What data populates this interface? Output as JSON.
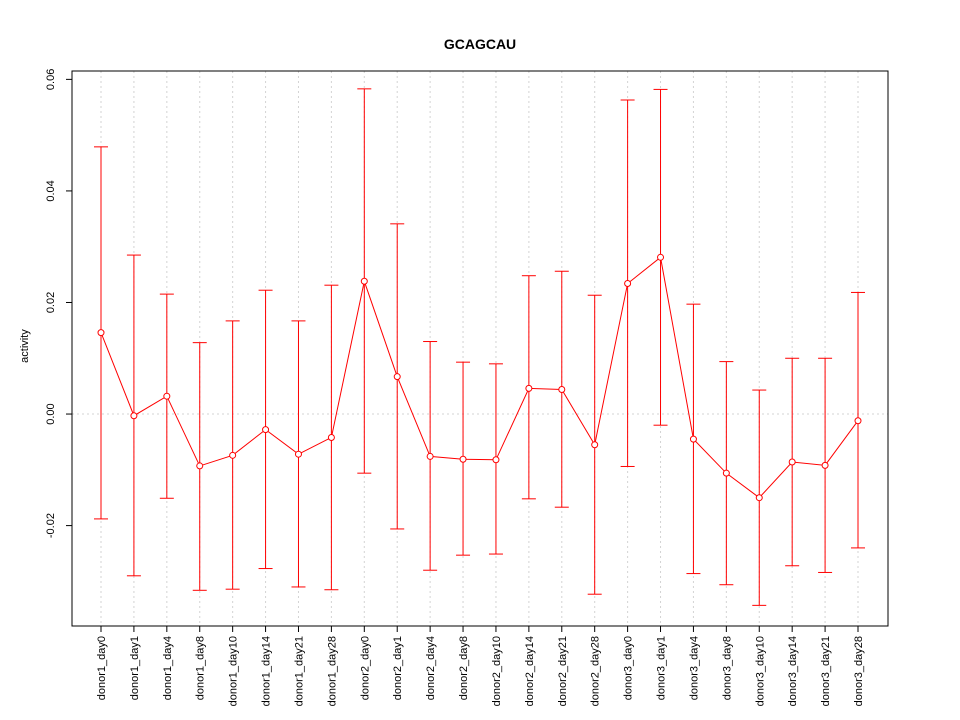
{
  "chart_data": {
    "type": "line",
    "title": "GCAGCAU",
    "xlabel": "",
    "ylabel": "activity",
    "ylim": [
      -0.038,
      0.0615
    ],
    "y_ticks": [
      -0.02,
      0.0,
      0.02,
      0.04,
      0.06
    ],
    "y_tick_labels": [
      "-0.02",
      "0.00",
      "0.02",
      "0.04",
      "0.06"
    ],
    "grid": true,
    "series_color": "#ff0000",
    "categories": [
      "donor1_day0",
      "donor1_day1",
      "donor1_day4",
      "donor1_day8",
      "donor1_day10",
      "donor1_day14",
      "donor1_day21",
      "donor1_day28",
      "donor2_day0",
      "donor2_day1",
      "donor2_day4",
      "donor2_day8",
      "donor2_day10",
      "donor2_day14",
      "donor2_day21",
      "donor2_day28",
      "donor3_day0",
      "donor3_day1",
      "donor3_day4",
      "donor3_day8",
      "donor3_day10",
      "donor3_day14",
      "donor3_day21",
      "donor3_day28"
    ],
    "values": [
      0.0146,
      -0.0003,
      0.0032,
      -0.0093,
      -0.0074,
      -0.0028,
      -0.0072,
      -0.0042,
      0.0238,
      0.0067,
      -0.0076,
      -0.0081,
      -0.0082,
      0.0046,
      0.0044,
      -0.0055,
      0.0234,
      0.0281,
      -0.0045,
      -0.0106,
      -0.015,
      -0.0086,
      -0.0092,
      -0.0012
    ],
    "upper": [
      0.0479,
      0.0285,
      0.0215,
      0.0128,
      0.0167,
      0.0222,
      0.0167,
      0.0231,
      0.0583,
      0.0341,
      0.013,
      0.0093,
      0.009,
      0.0248,
      0.0256,
      0.0213,
      0.0563,
      0.0582,
      0.0197,
      0.0094,
      0.0043,
      0.01,
      0.01,
      0.0218
    ],
    "lower": [
      -0.0188,
      -0.029,
      -0.0151,
      -0.0316,
      -0.0314,
      -0.0277,
      -0.031,
      -0.0315,
      -0.0106,
      -0.0206,
      -0.028,
      -0.0253,
      -0.0251,
      -0.0152,
      -0.0167,
      -0.0323,
      -0.0094,
      -0.002,
      -0.0286,
      -0.0306,
      -0.0343,
      -0.0272,
      -0.0284,
      -0.024
    ]
  }
}
